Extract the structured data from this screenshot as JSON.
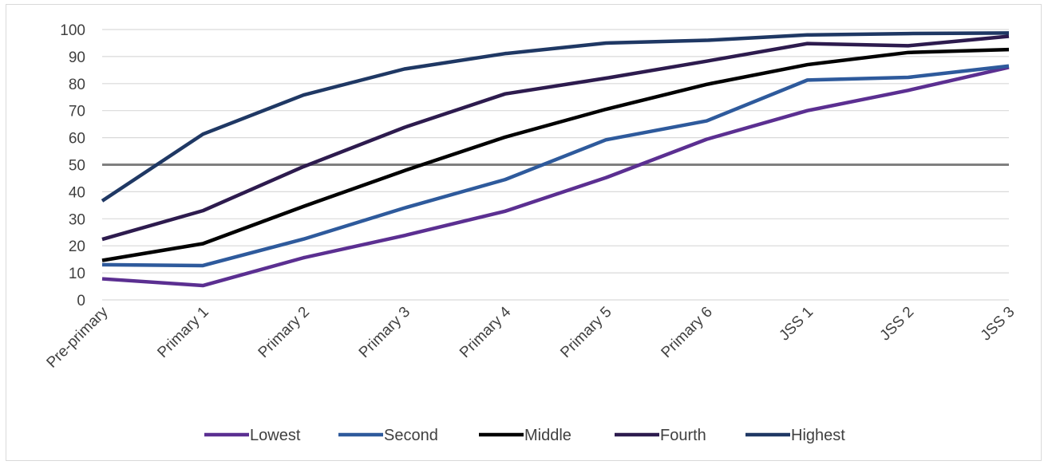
{
  "chart_data": {
    "type": "line",
    "categories": [
      "Pre-primary",
      "Primary 1",
      "Primary 2",
      "Primary 3",
      "Primary 4",
      "Primary 5",
      "Primary 6",
      "JSS 1",
      "JSS 2",
      "JSS 3"
    ],
    "y_ticks": [
      "0",
      "10",
      "20",
      "30",
      "40",
      "50",
      "60",
      "70",
      "80",
      "90",
      "100"
    ],
    "ylim": [
      0,
      100
    ],
    "grid": true,
    "reference_line": {
      "y": 50,
      "color": "#7f7f7f"
    },
    "legend_position": "bottom",
    "series": [
      {
        "name": "Lowest",
        "color": "#5b2f91",
        "values": [
          7.8,
          5.3,
          15.6,
          23.8,
          32.8,
          45.2,
          59.4,
          70.0,
          77.5,
          86.0
        ]
      },
      {
        "name": "Second",
        "color": "#2e5a9c",
        "values": [
          13.0,
          12.7,
          22.5,
          34.0,
          44.5,
          59.2,
          66.2,
          81.3,
          82.3,
          86.5
        ]
      },
      {
        "name": "Middle",
        "color": "#000000",
        "values": [
          14.6,
          20.8,
          34.6,
          47.8,
          60.2,
          70.5,
          79.7,
          87.0,
          91.5,
          92.6
        ]
      },
      {
        "name": "Fourth",
        "color": "#2d1b4e",
        "values": [
          22.4,
          33.0,
          49.3,
          63.8,
          76.2,
          82.0,
          88.3,
          94.8,
          94.0,
          97.5
        ]
      },
      {
        "name": "Highest",
        "color": "#1f3864",
        "values": [
          36.6,
          61.3,
          75.8,
          85.4,
          91.1,
          95.0,
          96.0,
          98.0,
          98.5,
          98.7
        ]
      }
    ]
  }
}
